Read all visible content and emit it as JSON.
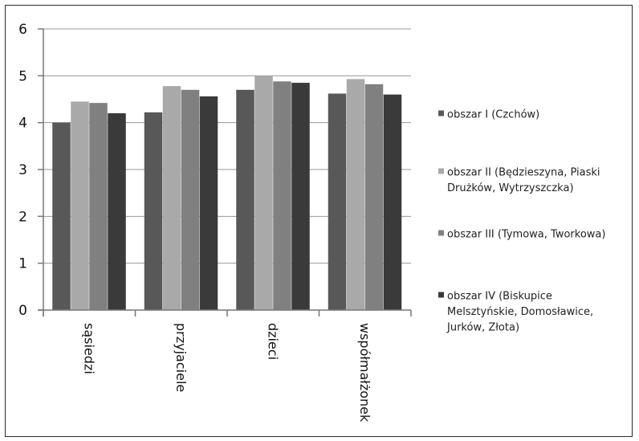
{
  "chart_data": {
    "type": "bar",
    "title": "",
    "xlabel": "",
    "ylabel": "",
    "ylim": [
      0,
      6
    ],
    "yticks": [
      "0",
      "1",
      "2",
      "3",
      "4",
      "5",
      "6"
    ],
    "grid": true,
    "legend_position": "right",
    "categories": [
      "sąsiedzi",
      "przyjaciele",
      "dzieci",
      "współmałżonek"
    ],
    "series": [
      {
        "name": "obszar I (Czchów)",
        "legend_lines": [
          "obszar I (Czchów)"
        ],
        "color": "#585858",
        "values": [
          4.0,
          4.22,
          4.7,
          4.62
        ]
      },
      {
        "name": "obszar II (Będzieszyna, Piaski Drużków, Wytrzyszczka)",
        "legend_lines": [
          "obszar II (Będzieszyna, Piaski",
          "Drużków, Wytrzyszczka)"
        ],
        "color": "#a9a9a9",
        "values": [
          4.45,
          4.78,
          5.0,
          4.93
        ]
      },
      {
        "name": "obszar III (Tymowa, Tworkowa)",
        "legend_lines": [
          "obszar III (Tymowa, Tworkowa)"
        ],
        "color": "#808080",
        "values": [
          4.42,
          4.7,
          4.88,
          4.82
        ]
      },
      {
        "name": "obszar IV (Biskupice Melsztyńskie, Domosławice, Jurków, Złota)",
        "legend_lines": [
          "obszar IV (Biskupice",
          "Melsztyńskie, Domosławice,",
          "Jurków, Złota)"
        ],
        "color": "#3a3a3a",
        "values": [
          4.2,
          4.56,
          4.85,
          4.6
        ]
      }
    ]
  }
}
